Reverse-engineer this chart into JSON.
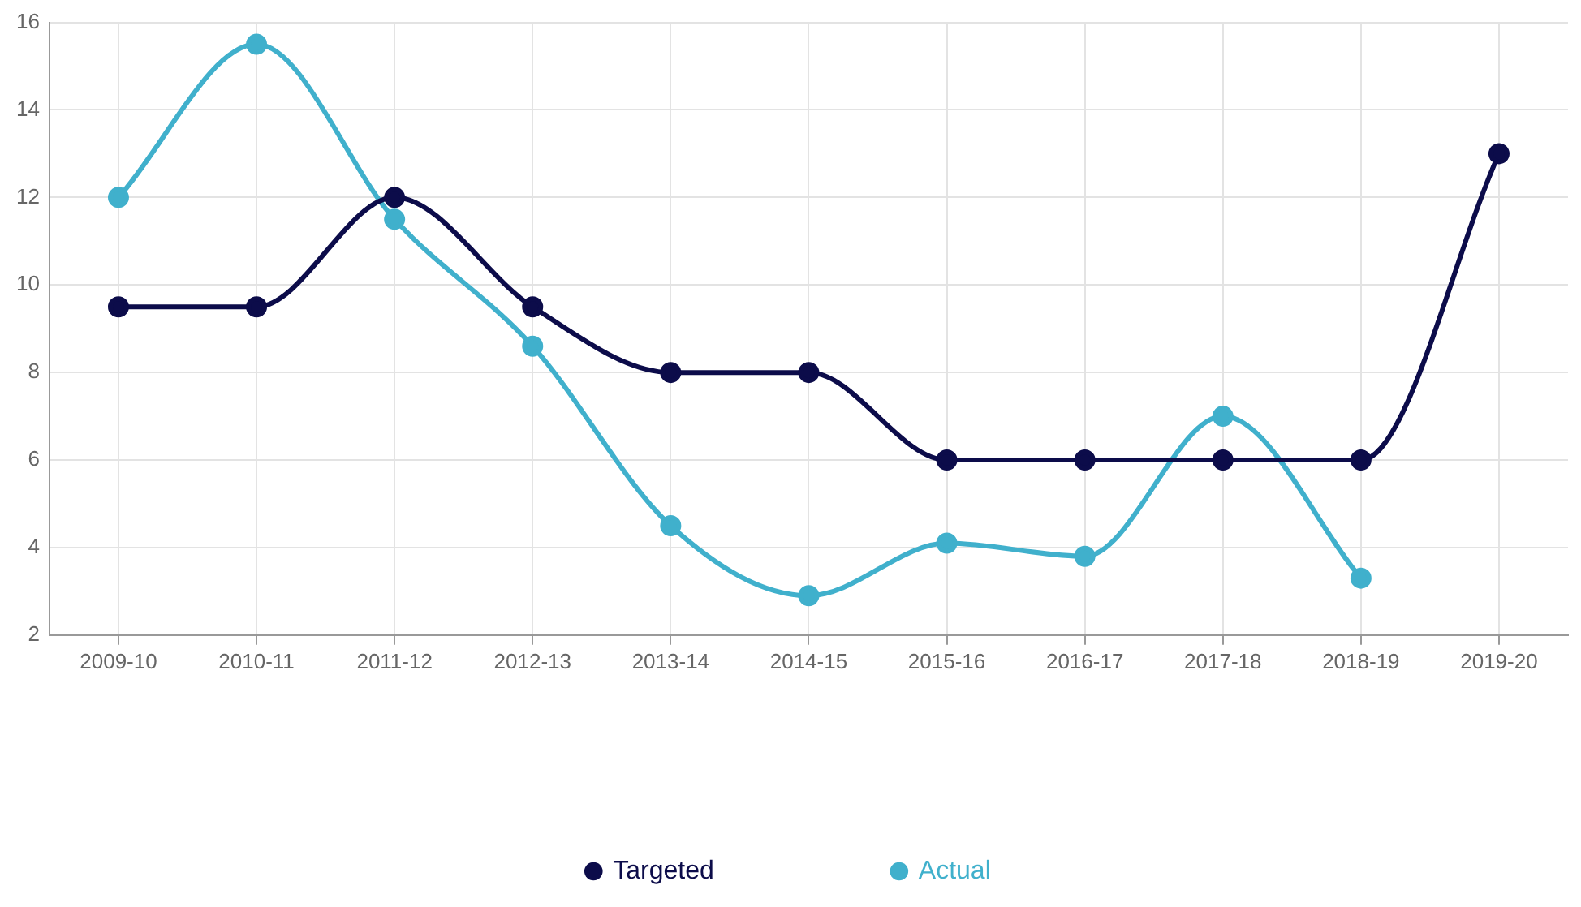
{
  "chart_data": {
    "type": "line",
    "categories": [
      "2009-10",
      "2010-11",
      "2011-12",
      "2012-13",
      "2013-14",
      "2014-15",
      "2015-16",
      "2016-17",
      "2017-18",
      "2018-19",
      "2019-20"
    ],
    "series": [
      {
        "name": "Targeted",
        "color": "#0c0c4a",
        "values": [
          9.5,
          9.5,
          12,
          9.5,
          8,
          8,
          6,
          6,
          6,
          6,
          13
        ]
      },
      {
        "name": "Actual",
        "color": "#40b0cc",
        "values": [
          12,
          15.5,
          11.5,
          8.6,
          4.5,
          2.9,
          4.1,
          3.8,
          7,
          3.3,
          null
        ]
      }
    ],
    "ylim": [
      2,
      16
    ],
    "yticks": [
      2,
      4,
      6,
      8,
      10,
      12,
      14,
      16
    ],
    "grid": true,
    "legend": "bottom",
    "marker": "circle",
    "line_style": "solid"
  }
}
